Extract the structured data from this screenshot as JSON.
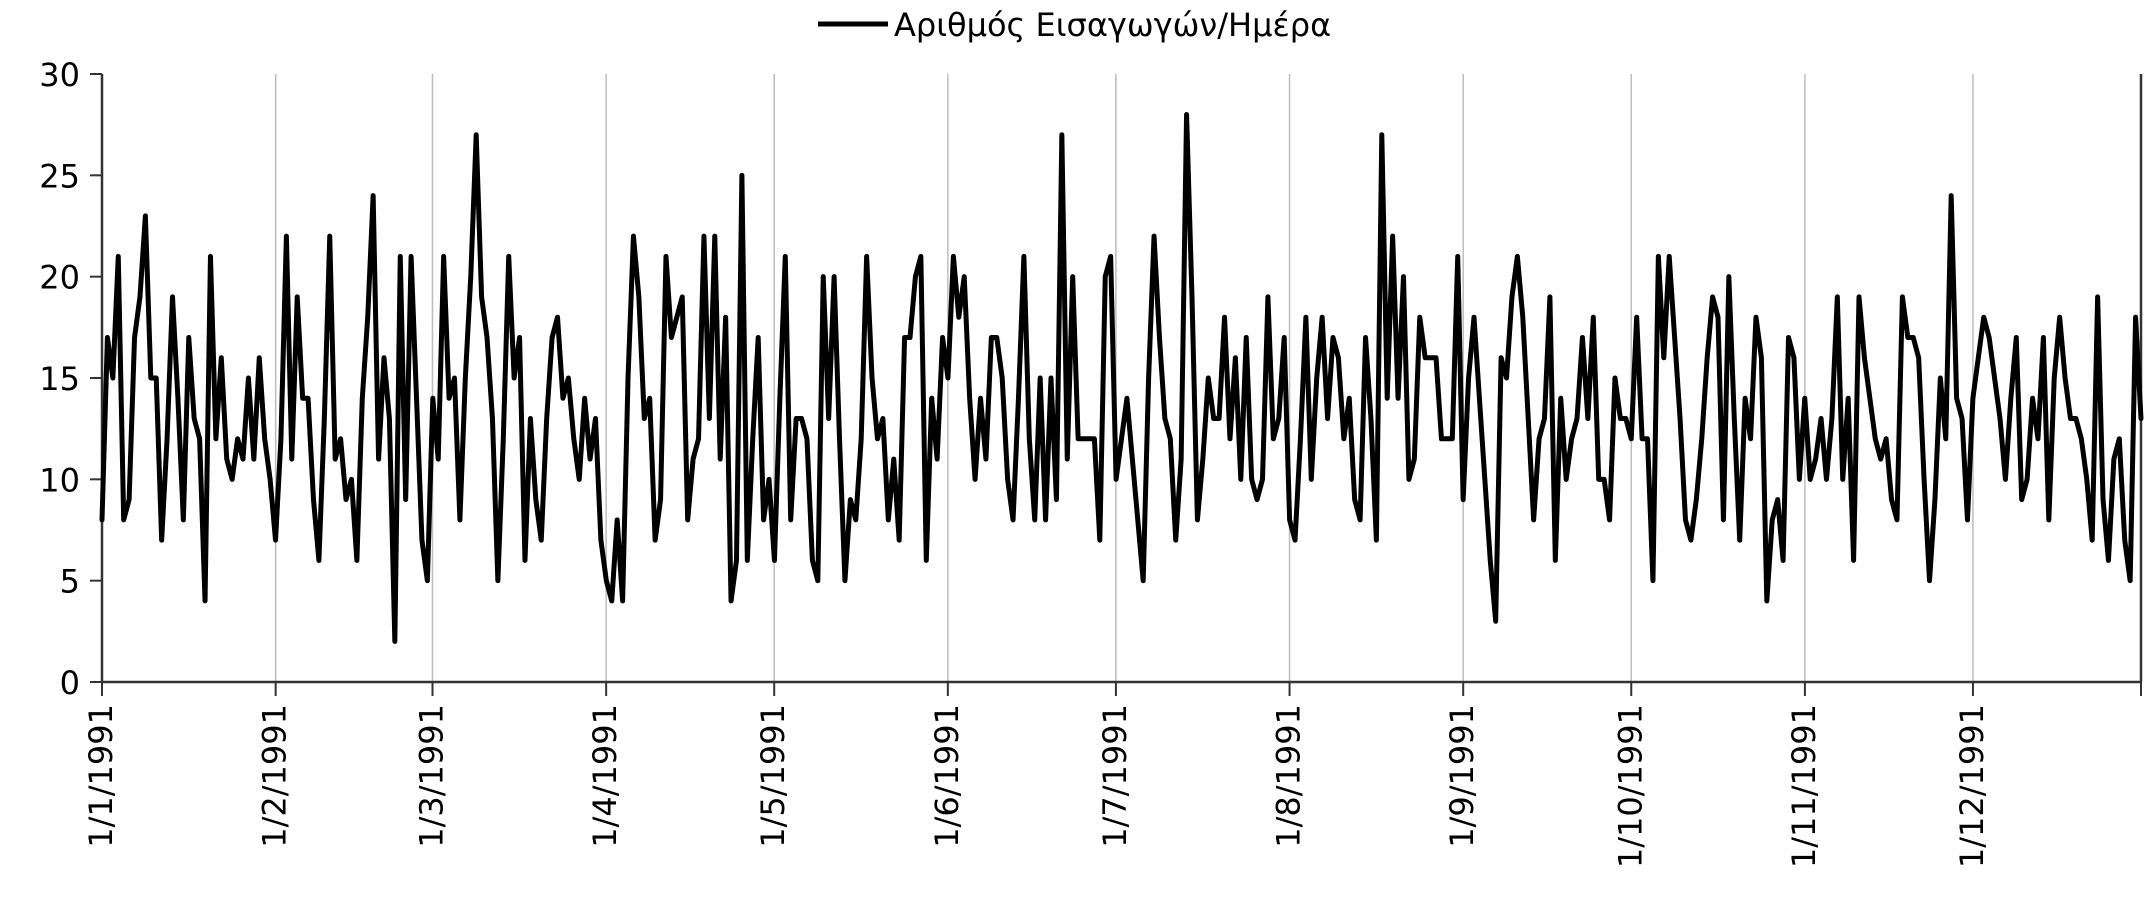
{
  "chart_data": {
    "type": "line",
    "title": "",
    "xlabel": "",
    "ylabel": "",
    "x_start": "1/1/1991",
    "x_end": "31/12/1991",
    "xtick_labels": [
      "1/1/1991",
      "1/2/1991",
      "1/3/1991",
      "1/4/1991",
      "1/5/1991",
      "1/6/1991",
      "1/7/1991",
      "1/8/1991",
      "1/9/1991",
      "1/10/1991",
      "1/11/1991",
      "1/12/1991"
    ],
    "ylim": [
      0,
      30
    ],
    "yticks": [
      0,
      5,
      10,
      15,
      20,
      25,
      30
    ],
    "grid": "vertical",
    "legend_position": "top-center",
    "series": [
      {
        "name": "Αριθμός Εισαγωγών/Ημέρα",
        "color": "#000000",
        "values": [
          8,
          17,
          15,
          21,
          8,
          9,
          17,
          19,
          23,
          15,
          15,
          7,
          12,
          19,
          14,
          8,
          17,
          13,
          12,
          4,
          21,
          12,
          16,
          11,
          10,
          12,
          11,
          15,
          11,
          16,
          12,
          10,
          7,
          12,
          22,
          11,
          19,
          14,
          14,
          9,
          6,
          13,
          22,
          11,
          12,
          9,
          10,
          6,
          14,
          18,
          24,
          11,
          16,
          13,
          2,
          21,
          9,
          21,
          14,
          7,
          5,
          14,
          11,
          21,
          14,
          15,
          8,
          15,
          20,
          27,
          19,
          17,
          13,
          5,
          12,
          21,
          15,
          17,
          6,
          13,
          9,
          7,
          13,
          17,
          18,
          14,
          15,
          12,
          10,
          14,
          11,
          13,
          7,
          5,
          4,
          8,
          4,
          15,
          22,
          19,
          13,
          14,
          7,
          9,
          21,
          17,
          18,
          19,
          8,
          11,
          12,
          22,
          13,
          22,
          11,
          18,
          4,
          6,
          25,
          6,
          12,
          17,
          8,
          10,
          6,
          14,
          21,
          8,
          13,
          13,
          12,
          6,
          5,
          20,
          13,
          20,
          12,
          5,
          9,
          8,
          12,
          21,
          15,
          12,
          13,
          8,
          11,
          7,
          17,
          17,
          20,
          21,
          6,
          14,
          11,
          17,
          15,
          21,
          18,
          20,
          14,
          10,
          14,
          11,
          17,
          17,
          15,
          10,
          8,
          14,
          21,
          12,
          8,
          15,
          8,
          15,
          9,
          27,
          11,
          20,
          12,
          12,
          12,
          12,
          7,
          20,
          21,
          10,
          12,
          14,
          11,
          8,
          5,
          15,
          22,
          17,
          13,
          12,
          7,
          11,
          28,
          19,
          8,
          11,
          15,
          13,
          13,
          18,
          12,
          16,
          10,
          17,
          10,
          9,
          10,
          19,
          12,
          13,
          17,
          8,
          7,
          12,
          18,
          10,
          15,
          18,
          13,
          17,
          16,
          12,
          14,
          9,
          8,
          17,
          13,
          7,
          27,
          14,
          22,
          14,
          20,
          10,
          11,
          18,
          16,
          16,
          16,
          12,
          12,
          12,
          21,
          9,
          15,
          18,
          14,
          10,
          6,
          3,
          16,
          15,
          19,
          21,
          18,
          13,
          8,
          12,
          13,
          19,
          6,
          14,
          10,
          12,
          13,
          17,
          13,
          18,
          10,
          10,
          8,
          15,
          13,
          13,
          12,
          18,
          12,
          12,
          5,
          21,
          16,
          21,
          17,
          13,
          8,
          7,
          9,
          12,
          16,
          19,
          18,
          8,
          20,
          13,
          7,
          14,
          12,
          18,
          16,
          4,
          8,
          9,
          6,
          17,
          16,
          10,
          14,
          10,
          11,
          13,
          10,
          13,
          19,
          10,
          14,
          6,
          19,
          16,
          14,
          12,
          11,
          12,
          9,
          8,
          19,
          17,
          17,
          16,
          10,
          5,
          9,
          15,
          12,
          24,
          14,
          13,
          8,
          14,
          16,
          18,
          17,
          15,
          13,
          10,
          14,
          17,
          9,
          10,
          14,
          12,
          17,
          8,
          15,
          18,
          15,
          13,
          13,
          12,
          10,
          7,
          19,
          9,
          6,
          11,
          12,
          7,
          5,
          18,
          13
        ]
      }
    ]
  }
}
